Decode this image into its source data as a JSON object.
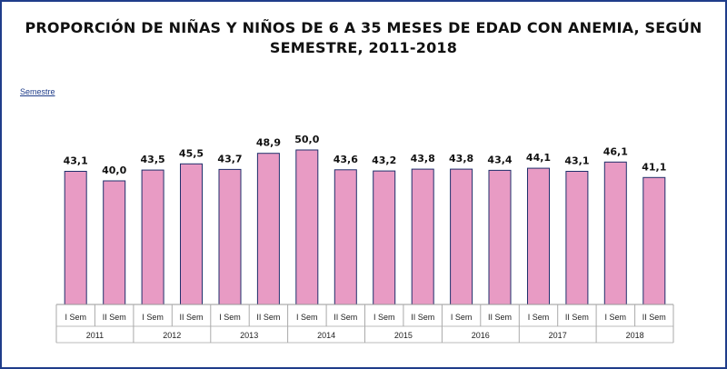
{
  "title_line1": "PROPORCIÓN DE NIÑAS Y NIÑOS DE 6 A 35 MESES DE EDAD CON ANEMIA, SEGÚN",
  "title_line2": "SEMESTRE, 2011-2018",
  "semestre_link": "Semestre",
  "colors": {
    "bar_fill": "#e89bc4",
    "bar_stroke": "#1f2f6b",
    "frame": "#1f3d8a"
  },
  "chart_data": {
    "type": "bar",
    "title": "PROPORCIÓN DE NIÑAS Y NIÑOS DE 6 A 35 MESES DE EDAD CON ANEMIA, SEGÚN SEMESTRE, 2011-2018",
    "xlabel": "",
    "ylabel": "",
    "ylim": [
      0,
      50
    ],
    "grid": false,
    "legend": "none",
    "categories": [
      "I Sem",
      "II Sem",
      "I Sem",
      "II Sem",
      "I Sem",
      "II Sem",
      "I Sem",
      "II Sem",
      "I Sem",
      "II Sem",
      "I Sem",
      "II Sem",
      "I Sem",
      "II Sem",
      "I Sem",
      "II Sem"
    ],
    "groups": [
      "2011",
      "2012",
      "2013",
      "2014",
      "2015",
      "2016",
      "2017",
      "2018"
    ],
    "values": [
      43.1,
      40.0,
      43.5,
      45.5,
      43.7,
      48.9,
      50.0,
      43.6,
      43.2,
      43.8,
      43.8,
      43.4,
      44.1,
      43.1,
      46.1,
      41.1
    ],
    "value_labels": [
      "43,1",
      "40,0",
      "43,5",
      "45,5",
      "43,7",
      "48,9",
      "50,0",
      "43,6",
      "43,2",
      "43,8",
      "43,8",
      "43,4",
      "44,1",
      "43,1",
      "46,1",
      "41,1"
    ]
  }
}
